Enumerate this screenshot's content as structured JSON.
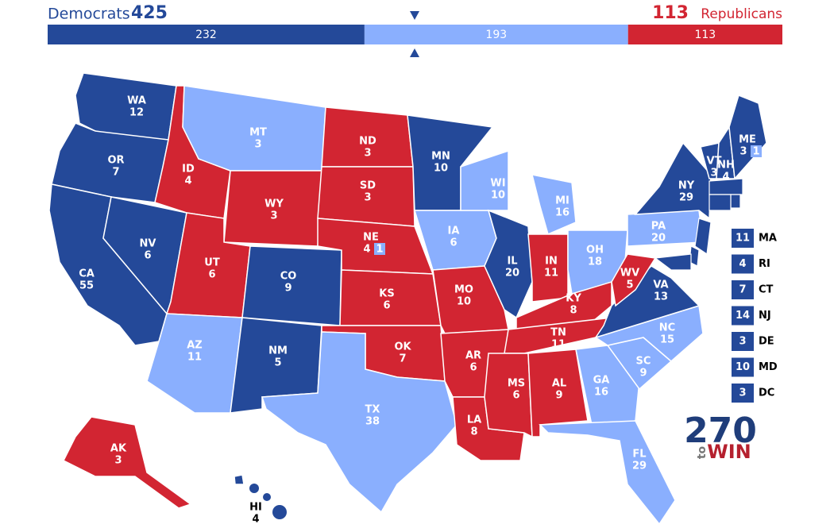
{
  "header": {
    "dem_label": "Democrats",
    "dem_total": 425,
    "rep_total": 113,
    "rep_label": "Republicans",
    "segments": [
      {
        "value": 232,
        "color": "#244999"
      },
      {
        "value": 193,
        "color": "#8aaffe"
      },
      {
        "value": 113,
        "color": "#d22532"
      }
    ]
  },
  "states": [
    {
      "abbr": "WA",
      "ev": 12,
      "color": "#244999"
    },
    {
      "abbr": "OR",
      "ev": 7,
      "color": "#244999"
    },
    {
      "abbr": "CA",
      "ev": 55,
      "color": "#244999"
    },
    {
      "abbr": "NV",
      "ev": 6,
      "color": "#244999"
    },
    {
      "abbr": "ID",
      "ev": 4,
      "color": "#d22532"
    },
    {
      "abbr": "MT",
      "ev": 3,
      "color": "#8aaffe"
    },
    {
      "abbr": "WY",
      "ev": 3,
      "color": "#d22532"
    },
    {
      "abbr": "UT",
      "ev": 6,
      "color": "#d22532"
    },
    {
      "abbr": "CO",
      "ev": 9,
      "color": "#244999"
    },
    {
      "abbr": "AZ",
      "ev": 11,
      "color": "#8aaffe"
    },
    {
      "abbr": "NM",
      "ev": 5,
      "color": "#244999"
    },
    {
      "abbr": "ND",
      "ev": 3,
      "color": "#d22532"
    },
    {
      "abbr": "SD",
      "ev": 3,
      "color": "#d22532"
    },
    {
      "abbr": "NE",
      "ev": 4,
      "color": "#d22532",
      "district": {
        "ev": 1,
        "color": "#8aaffe"
      }
    },
    {
      "abbr": "KS",
      "ev": 6,
      "color": "#d22532"
    },
    {
      "abbr": "OK",
      "ev": 7,
      "color": "#d22532"
    },
    {
      "abbr": "TX",
      "ev": 38,
      "color": "#8aaffe"
    },
    {
      "abbr": "MN",
      "ev": 10,
      "color": "#244999"
    },
    {
      "abbr": "IA",
      "ev": 6,
      "color": "#8aaffe"
    },
    {
      "abbr": "MO",
      "ev": 10,
      "color": "#d22532"
    },
    {
      "abbr": "AR",
      "ev": 6,
      "color": "#d22532"
    },
    {
      "abbr": "LA",
      "ev": 8,
      "color": "#d22532"
    },
    {
      "abbr": "WI",
      "ev": 10,
      "color": "#8aaffe"
    },
    {
      "abbr": "IL",
      "ev": 20,
      "color": "#244999"
    },
    {
      "abbr": "MI",
      "ev": 16,
      "color": "#8aaffe"
    },
    {
      "abbr": "IN",
      "ev": 11,
      "color": "#d22532"
    },
    {
      "abbr": "OH",
      "ev": 18,
      "color": "#8aaffe"
    },
    {
      "abbr": "KY",
      "ev": 8,
      "color": "#d22532"
    },
    {
      "abbr": "TN",
      "ev": 11,
      "color": "#d22532"
    },
    {
      "abbr": "MS",
      "ev": 6,
      "color": "#d22532"
    },
    {
      "abbr": "AL",
      "ev": 9,
      "color": "#d22532"
    },
    {
      "abbr": "GA",
      "ev": 16,
      "color": "#8aaffe"
    },
    {
      "abbr": "FL",
      "ev": 29,
      "color": "#8aaffe"
    },
    {
      "abbr": "SC",
      "ev": 9,
      "color": "#8aaffe"
    },
    {
      "abbr": "NC",
      "ev": 15,
      "color": "#8aaffe"
    },
    {
      "abbr": "VA",
      "ev": 13,
      "color": "#244999"
    },
    {
      "abbr": "WV",
      "ev": 5,
      "color": "#d22532"
    },
    {
      "abbr": "PA",
      "ev": 20,
      "color": "#8aaffe"
    },
    {
      "abbr": "NY",
      "ev": 29,
      "color": "#244999"
    },
    {
      "abbr": "VT",
      "ev": 3,
      "color": "#244999"
    },
    {
      "abbr": "NH",
      "ev": 4,
      "color": "#244999"
    },
    {
      "abbr": "ME",
      "ev": 3,
      "color": "#244999",
      "district": {
        "ev": 1,
        "color": "#8aaffe"
      }
    },
    {
      "abbr": "AK",
      "ev": 3,
      "color": "#d22532"
    },
    {
      "abbr": "HI",
      "ev": 4,
      "color": "#244999"
    }
  ],
  "small_states": [
    {
      "abbr": "MA",
      "ev": 11,
      "color": "#244999"
    },
    {
      "abbr": "RI",
      "ev": 4,
      "color": "#244999"
    },
    {
      "abbr": "CT",
      "ev": 7,
      "color": "#244999"
    },
    {
      "abbr": "NJ",
      "ev": 14,
      "color": "#244999"
    },
    {
      "abbr": "DE",
      "ev": 3,
      "color": "#244999"
    },
    {
      "abbr": "MD",
      "ev": 10,
      "color": "#244999"
    },
    {
      "abbr": "DC",
      "ev": 3,
      "color": "#244999"
    }
  ],
  "logo": {
    "number": "270",
    "to": "to",
    "win": "WIN"
  }
}
